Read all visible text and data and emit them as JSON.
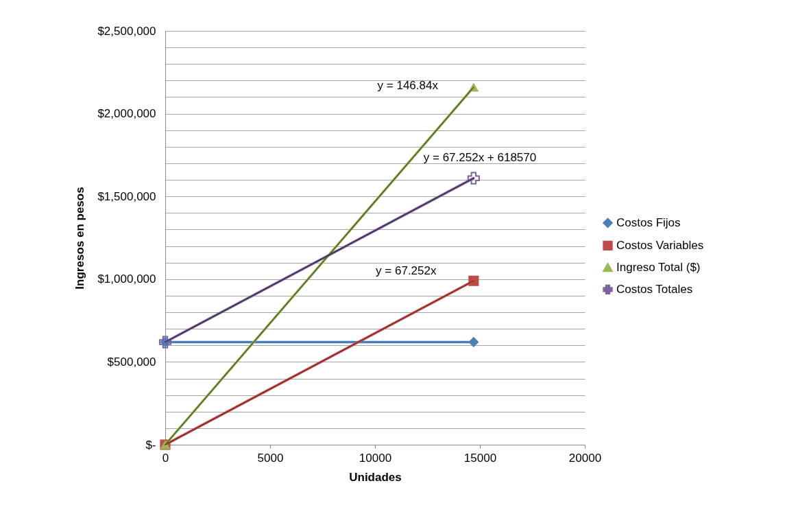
{
  "chart_data": {
    "type": "line",
    "xlabel": "Unidades",
    "ylabel": "Ingresos en pesos",
    "x": [
      0,
      14700
    ],
    "series": [
      {
        "name": "Costos Fijos",
        "color": "#4a7ebb",
        "marker": "diamond",
        "values": [
          620000,
          620000
        ]
      },
      {
        "name": "Costos Variables",
        "color": "#be4b48",
        "marker": "square",
        "values": [
          0,
          990000
        ]
      },
      {
        "name": "Ingreso Total ($)",
        "color": "#98b954",
        "marker": "triangle",
        "values": [
          0,
          2160000
        ]
      },
      {
        "name": "Costos Totales",
        "color": "#7d60a0",
        "marker": "cross",
        "values": [
          620000,
          1610000
        ]
      },
      {
        "color": "#8b2c2a",
        "marker": "none",
        "values": [
          0,
          990000
        ]
      },
      {
        "color": "#4f6228",
        "marker": "none",
        "values": [
          0,
          2160000
        ]
      },
      {
        "color": "#403152",
        "marker": "none",
        "values": [
          620000,
          1610000
        ]
      }
    ],
    "xlim": [
      0,
      20000
    ],
    "xticks": [
      0,
      5000,
      10000,
      15000,
      20000
    ],
    "ylim": [
      0,
      2500000
    ],
    "yticks": [
      {
        "value": 0,
        "label": "$-"
      },
      {
        "value": 100000,
        "label": null
      },
      {
        "value": 200000,
        "label": null
      },
      {
        "value": 300000,
        "label": null
      },
      {
        "value": 400000,
        "label": null
      },
      {
        "value": 500000,
        "label": "$500,000"
      },
      {
        "value": 600000,
        "label": null
      },
      {
        "value": 700000,
        "label": null
      },
      {
        "value": 800000,
        "label": null
      },
      {
        "value": 900000,
        "label": null
      },
      {
        "value": 1000000,
        "label": "$1,000,000"
      },
      {
        "value": 1100000,
        "label": null
      },
      {
        "value": 1200000,
        "label": null
      },
      {
        "value": 1300000,
        "label": null
      },
      {
        "value": 1400000,
        "label": null
      },
      {
        "value": 1500000,
        "label": "$1,500,000"
      },
      {
        "value": 1600000,
        "label": null
      },
      {
        "value": 1700000,
        "label": null
      },
      {
        "value": 1800000,
        "label": null
      },
      {
        "value": 1900000,
        "label": null
      },
      {
        "value": 2000000,
        "label": "$2,000,000"
      },
      {
        "value": 2100000,
        "label": null
      },
      {
        "value": 2200000,
        "label": null
      },
      {
        "value": 2300000,
        "label": null
      },
      {
        "value": 2400000,
        "label": null
      },
      {
        "value": 2500000,
        "label": "$2,500,000"
      }
    ],
    "annotations": [
      "y = 146.84x",
      "y = 67.252x + 618570",
      "y = 67.252x"
    ],
    "grid": "y",
    "legend": "right"
  }
}
